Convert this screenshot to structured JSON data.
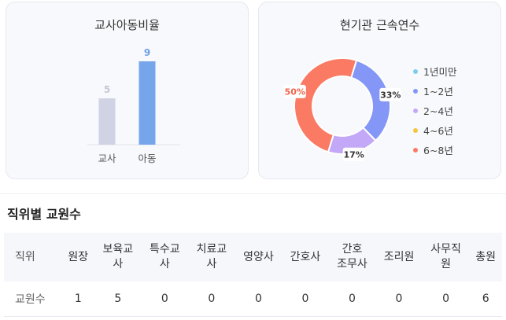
{
  "left_card": {
    "title": "교사아동비율"
  },
  "bar_chart": {
    "type": "bar",
    "categories": [
      "교사",
      "아동"
    ],
    "values": [
      5,
      9
    ],
    "value_labels": [
      "5",
      "9"
    ],
    "colors": [
      "#cfd3e3",
      "#76a5ec"
    ],
    "label_colors": [
      "#c4c8d8",
      "#6e9fe8"
    ],
    "ylim": [
      0,
      9
    ]
  },
  "right_card": {
    "title": "현기관 근속연수"
  },
  "donut_chart": {
    "type": "pie",
    "slices": [
      {
        "label": "1~2년",
        "value": 33,
        "text": "33%",
        "color": "#8497f7"
      },
      {
        "label": "2~4년",
        "value": 17,
        "text": "17%",
        "color": "#c3a8f7"
      },
      {
        "label": "6~8년",
        "value": 50,
        "text": "50%",
        "color": "#fa7a64"
      }
    ]
  },
  "chart_data": [
    {
      "type": "bar",
      "title": "교사아동비율",
      "categories": [
        "교사",
        "아동"
      ],
      "values": [
        5,
        9
      ]
    },
    {
      "type": "pie",
      "title": "현기관 근속연수",
      "categories": [
        "1년미만",
        "1~2년",
        "2~4년",
        "4~6년",
        "6~8년"
      ],
      "values": [
        0,
        33,
        17,
        0,
        50
      ]
    }
  ],
  "legend": [
    {
      "label": "1년미만",
      "color": "#7ecbf0"
    },
    {
      "label": "1~2년",
      "color": "#8497f7"
    },
    {
      "label": "2~4년",
      "color": "#c3a8f7"
    },
    {
      "label": "4~6년",
      "color": "#f3c53c"
    },
    {
      "label": "6~8년",
      "color": "#fa7a64"
    }
  ],
  "section": {
    "title": "직위별 교원수"
  },
  "table": {
    "headers": [
      "직위",
      "원장",
      "보육교\n사",
      "특수교\n사",
      "치료교\n사",
      "영양사",
      "간호사",
      "간호\n조무사",
      "조리원",
      "사무직\n원",
      "총원"
    ],
    "row_label": "교원수",
    "values": [
      "1",
      "5",
      "0",
      "0",
      "0",
      "0",
      "0",
      "0",
      "0",
      "6"
    ]
  }
}
